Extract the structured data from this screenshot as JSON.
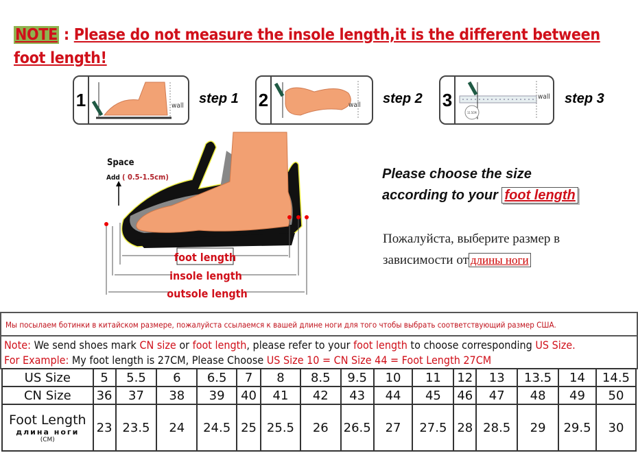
{
  "note": {
    "tag": "NOTE",
    "sep": " : ",
    "text": "Please do not measure the insole length,it is the different between foot length!"
  },
  "steps": [
    {
      "num": "1",
      "label": "step 1",
      "wall": "wall"
    },
    {
      "num": "2",
      "label": "step 2",
      "wall": "wall"
    },
    {
      "num": "3",
      "label": "step 3",
      "wall": "wall",
      "ruler_reading": "11.5CM"
    }
  ],
  "diagram": {
    "space": "Space",
    "add": "Add",
    "add_range": "( 0.5-1.5cm)",
    "foot_length": "foot length",
    "insole_length": "insole length",
    "outsole_length": "outsole length"
  },
  "advice": {
    "en_line1": "Please choose the size",
    "en_line2": "according to your",
    "en_highlight": "foot length",
    "ru_line1": "Пожалуйста, выберите размер в",
    "ru_line2": "зависимости от",
    "ru_highlight": "длины ноги"
  },
  "info": {
    "russian_notice": "Мы посылаем ботинки в китайском размере, пожалуйста ссылаемся к вашей длине ноги для того чтобы выбрать соответствующий размер США.",
    "note_label": "Note:",
    "note_parts": [
      "We send shoes mark ",
      "CN size",
      " or ",
      "foot length",
      ", please refer to your ",
      "foot length",
      " to choose corresponding ",
      "US Size."
    ],
    "example_label": "For Example:",
    "example_text": " My foot length is 27CM, Please Choose ",
    "example_highlight": "US Size 10 = CN Size 44 = Foot Length 27CM"
  },
  "size_table": {
    "us_label": "US Size",
    "cn_label": "CN Size",
    "foot_label": "Foot Length",
    "foot_label_ru": "длина ноги",
    "foot_unit": "(CM)",
    "us": [
      "5",
      "5.5",
      "6",
      "6.5",
      "7",
      "8",
      "8.5",
      "9.5",
      "10",
      "11",
      "12",
      "13",
      "13.5",
      "14",
      "14.5"
    ],
    "cn": [
      "36",
      "37",
      "38",
      "39",
      "40",
      "41",
      "42",
      "43",
      "44",
      "45",
      "46",
      "47",
      "48",
      "49",
      "50"
    ],
    "foot": [
      "23",
      "23.5",
      "24",
      "24.5",
      "25",
      "25.5",
      "26",
      "26.5",
      "27",
      "27.5",
      "28",
      "28.5",
      "29",
      "29.5",
      "30"
    ]
  },
  "colors": {
    "accent_red": "#d0101a",
    "note_tag_bg": "#8fb34f",
    "skin": "#f0a070"
  }
}
